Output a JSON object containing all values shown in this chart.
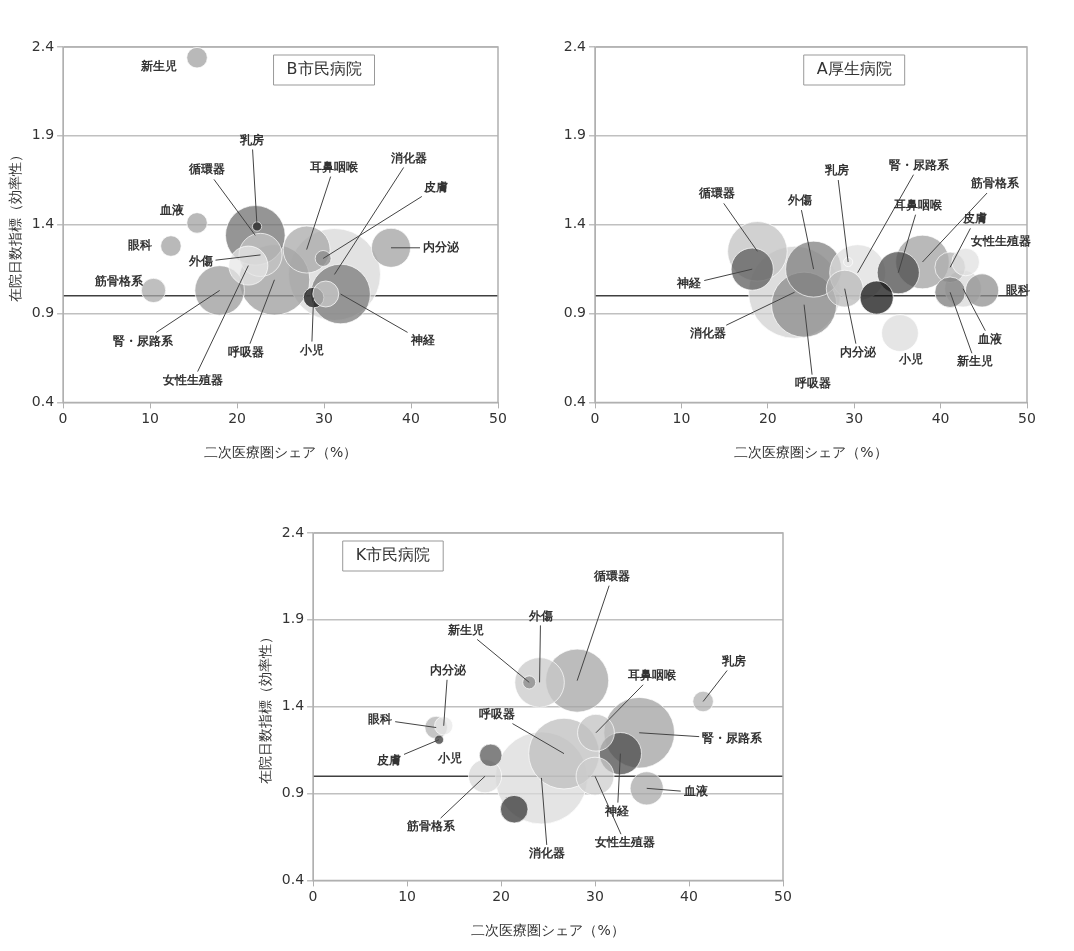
{
  "chart_data": [
    {
      "type": "bubble",
      "title": "B市民病院",
      "xlabel": "二次医療圏シェア（%）",
      "ylabel": "在院日数指標（効率性）",
      "x": [
        31.2,
        24.3,
        22.1,
        31.9,
        18.0,
        28.0,
        22.7,
        21.3,
        37.7,
        28.8,
        30.2,
        10.4,
        15.4,
        15.4,
        12.4,
        29.9,
        22.3
      ],
      "values": [
        1.12,
        1.09,
        1.34,
        1.01,
        1.03,
        1.26,
        1.23,
        1.17,
        1.27,
        0.99,
        1.01,
        1.03,
        2.34,
        1.41,
        1.28,
        1.21,
        1.39
      ],
      "sizes": [
        1,
        0.59,
        0.42,
        0.42,
        0.29,
        0.26,
        0.22,
        0.18,
        0.18,
        0.05,
        0.08,
        0.07,
        0.05,
        0.05,
        0.05,
        0.03,
        0.01
      ],
      "colors": [
        "#d8d8d8",
        "#9a9a9a",
        "#6e6e6e",
        "#7a7a7a",
        "#999999",
        "#a8a8a8",
        "#c4c4c4",
        "#e6e6e6",
        "#a0a0a0",
        "#111111",
        "#c8c8c8",
        "#a8a8a8",
        "#a0a0a0",
        "#a0a0a0",
        "#a0a0a0",
        "#8a8a8a",
        "#222222"
      ],
      "annotations": [
        {
          "text": "消化器",
          "x": 31.2,
          "y": 1.12
        },
        {
          "text": "呼吸器",
          "x": 24.3,
          "y": 1.09
        },
        {
          "text": "循環器",
          "x": 22.1,
          "y": 1.34
        },
        {
          "text": "神経",
          "x": 31.9,
          "y": 1.01
        },
        {
          "text": "腎・尿路系",
          "x": 18.0,
          "y": 1.03
        },
        {
          "text": "耳鼻咽喉",
          "x": 28.0,
          "y": 1.26
        },
        {
          "text": "外傷",
          "x": 22.7,
          "y": 1.23
        },
        {
          "text": "女性生殖器",
          "x": 21.3,
          "y": 1.17
        },
        {
          "text": "内分泌",
          "x": 37.7,
          "y": 1.27
        },
        {
          "text": "筋骨格系",
          "x": 10.4,
          "y": 1.03
        },
        {
          "text": "新生児",
          "x": 15.4,
          "y": 2.34
        },
        {
          "text": "血液",
          "x": 15.4,
          "y": 1.41
        },
        {
          "text": "眼科",
          "x": 12.4,
          "y": 1.28
        },
        {
          "text": "小児",
          "x": 28.8,
          "y": 0.99
        },
        {
          "text": "皮膚",
          "x": 29.9,
          "y": 1.21
        },
        {
          "text": "乳房",
          "x": 22.3,
          "y": 1.39
        }
      ],
      "xlim": [
        0,
        50
      ],
      "xticks": [
        0,
        10,
        20,
        30,
        40,
        50
      ],
      "ylim": [
        0.4,
        2.4
      ],
      "yticks": [
        0.4,
        0.9,
        1.4,
        1.9,
        2.4
      ],
      "grid": "y",
      "ref_lines": [
        {
          "axis": "y",
          "value": 1.0,
          "color": "#404040"
        }
      ]
    },
    {
      "type": "bubble",
      "title": "A厚生病院",
      "xlabel": "二次医療圏シェア（%）",
      "x": [
        23.1,
        24.2,
        18.8,
        25.3,
        30.4,
        37.9,
        18.2,
        35.1,
        28.9,
        35.3,
        42.6,
        32.6,
        44.8,
        41.1,
        41.1,
        42.9,
        29.3
      ],
      "values": [
        1.02,
        0.95,
        1.25,
        1.15,
        1.13,
        1.19,
        1.15,
        1.13,
        1.04,
        0.79,
        1.04,
        0.99,
        1.03,
        1.16,
        1.02,
        1.19,
        1.19
      ],
      "sizes": [
        1,
        0.5,
        0.42,
        0.37,
        0.37,
        0.34,
        0.21,
        0.21,
        0.16,
        0.16,
        0.16,
        0.13,
        0.13,
        0.11,
        0.11,
        0.09,
        0.01
      ],
      "colors": [
        "#d0d0d0",
        "#8a8a8a",
        "#c0c0c0",
        "#7e7e7e",
        "#dedede",
        "#a0a0a0",
        "#5a5a5a",
        "#4a4a4a",
        "#b8b8b8",
        "#dcdcdc",
        "#d8d8d8",
        "#111111",
        "#8e8e8e",
        "#b0b0b0",
        "#7a7a7a",
        "#e0e0e0",
        "#e8e8e8"
      ],
      "annotations": [
        {
          "text": "消化器",
          "x": 23.1,
          "y": 1.02
        },
        {
          "text": "呼吸器",
          "x": 24.2,
          "y": 0.95
        },
        {
          "text": "循環器",
          "x": 18.8,
          "y": 1.25
        },
        {
          "text": "外傷",
          "x": 25.3,
          "y": 1.15
        },
        {
          "text": "腎・尿路系",
          "x": 30.4,
          "y": 1.13
        },
        {
          "text": "筋骨格系",
          "x": 37.9,
          "y": 1.19
        },
        {
          "text": "神経",
          "x": 18.2,
          "y": 1.15
        },
        {
          "text": "耳鼻咽喉",
          "x": 35.1,
          "y": 1.13
        },
        {
          "text": "内分泌",
          "x": 28.9,
          "y": 1.04
        },
        {
          "text": "小児",
          "x": 35.3,
          "y": 0.79
        },
        {
          "text": "血液",
          "x": 42.6,
          "y": 1.04
        },
        {
          "text": "眼科",
          "x": 44.8,
          "y": 1.03
        },
        {
          "text": "皮膚",
          "x": 41.1,
          "y": 1.16
        },
        {
          "text": "新生児",
          "x": 41.1,
          "y": 1.02
        },
        {
          "text": "女性生殖器",
          "x": 42.9,
          "y": 1.19
        },
        {
          "text": "乳房",
          "x": 29.3,
          "y": 1.19
        }
      ],
      "xlim": [
        0,
        50
      ],
      "xticks": [
        0,
        10,
        20,
        30,
        40,
        50
      ],
      "ylim": [
        0.4,
        2.4
      ],
      "yticks": [
        0.4,
        0.9,
        1.4,
        1.9,
        2.4
      ],
      "grid": "y",
      "ref_lines": [
        {
          "axis": "y",
          "value": 1.0,
          "color": "#404040"
        }
      ]
    },
    {
      "type": "bubble",
      "title": "K市民病院",
      "xlabel": "二次医療圏シェア（%）",
      "ylabel": "在院日数指標（効率性）",
      "x": [
        24.3,
        26.7,
        34.7,
        28.1,
        24.1,
        32.7,
        30.0,
        30.1,
        18.3,
        35.5,
        21.4,
        18.9,
        13.1,
        41.5,
        13.9,
        23.0,
        13.4
      ],
      "values": [
        0.99,
        1.13,
        1.25,
        1.55,
        1.54,
        1.13,
        1.0,
        1.25,
        1.0,
        0.93,
        0.81,
        1.12,
        1.28,
        1.43,
        1.29,
        1.54,
        1.21
      ],
      "sizes": [
        1,
        0.59,
        0.59,
        0.47,
        0.29,
        0.21,
        0.17,
        0.16,
        0.13,
        0.13,
        0.09,
        0.06,
        0.06,
        0.05,
        0.04,
        0.02,
        0.01
      ],
      "colors": [
        "#dadada",
        "#bdbdbd",
        "#a0a0a0",
        "#a4a4a4",
        "#c8c8c8",
        "#4a4a4a",
        "#cccccc",
        "#c0c0c0",
        "#d8d8d8",
        "#a8a8a8",
        "#333333",
        "#555555",
        "#b0b0b0",
        "#b0b0b0",
        "#e8e8e8",
        "#888888",
        "#333333"
      ],
      "annotations": [
        {
          "text": "消化器",
          "x": 24.3,
          "y": 0.99
        },
        {
          "text": "呼吸器",
          "x": 26.7,
          "y": 1.13
        },
        {
          "text": "腎・尿路系",
          "x": 34.7,
          "y": 1.25
        },
        {
          "text": "循環器",
          "x": 28.1,
          "y": 1.55
        },
        {
          "text": "外傷",
          "x": 24.1,
          "y": 1.54
        },
        {
          "text": "神経",
          "x": 32.7,
          "y": 1.13
        },
        {
          "text": "女性生殖器",
          "x": 30.0,
          "y": 1.0
        },
        {
          "text": "耳鼻咽喉",
          "x": 30.1,
          "y": 1.25
        },
        {
          "text": "筋骨格系",
          "x": 18.3,
          "y": 1.0
        },
        {
          "text": "血液",
          "x": 35.5,
          "y": 0.93
        },
        {
          "text": "小児",
          "x": 18.9,
          "y": 1.12
        },
        {
          "text": "眼科",
          "x": 13.1,
          "y": 1.28
        },
        {
          "text": "乳房",
          "x": 41.5,
          "y": 1.43
        },
        {
          "text": "内分泌",
          "x": 13.9,
          "y": 1.29
        },
        {
          "text": "新生児",
          "x": 23.0,
          "y": 1.54
        },
        {
          "text": "皮膚",
          "x": 13.4,
          "y": 1.21
        }
      ],
      "xlim": [
        0,
        50
      ],
      "xticks": [
        0,
        10,
        20,
        30,
        40,
        50
      ],
      "ylim": [
        0.4,
        2.4
      ],
      "yticks": [
        0.4,
        0.9,
        1.4,
        1.9,
        2.4
      ],
      "grid": "y",
      "ref_lines": [
        {
          "axis": "y",
          "value": 1.0,
          "color": "#404040"
        }
      ]
    }
  ]
}
